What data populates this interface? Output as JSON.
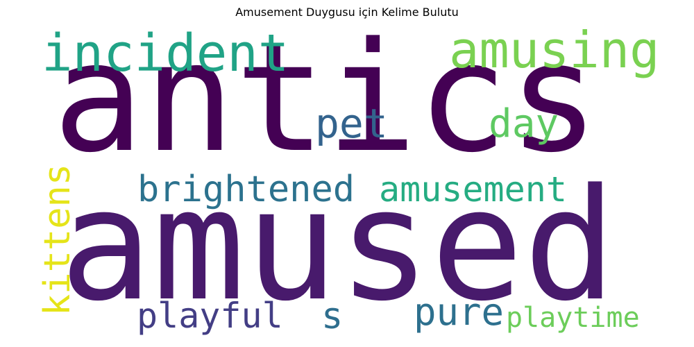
{
  "title": "Amusement Duygusu için Kelime Bulutu",
  "words": {
    "antics": {
      "text": "antics",
      "color": "#440154"
    },
    "amused": {
      "text": "amused",
      "color": "#481a6c"
    },
    "incident": {
      "text": "incident",
      "color": "#20a386"
    },
    "amusing": {
      "text": "amusing",
      "color": "#7ad151"
    },
    "pet": {
      "text": "pet",
      "color": "#33638d"
    },
    "day": {
      "text": "day",
      "color": "#5ec962"
    },
    "brightened": {
      "text": "brightened",
      "color": "#2c728e"
    },
    "amusement": {
      "text": "amusement",
      "color": "#25ac82"
    },
    "kittens": {
      "text": "kittens",
      "color": "#e5e419"
    },
    "playful": {
      "text": "playful",
      "color": "#433e85"
    },
    "s": {
      "text": "s",
      "color": "#2e6e8e"
    },
    "pure": {
      "text": "pure",
      "color": "#2d708e"
    },
    "playtime": {
      "text": "playtime",
      "color": "#6ccd5a"
    }
  }
}
